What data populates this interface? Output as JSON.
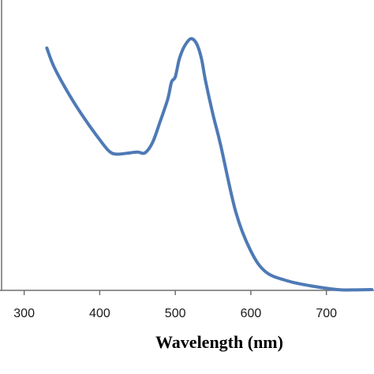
{
  "chart_data": {
    "type": "line",
    "title": "",
    "xlabel": "Wavelength (nm)",
    "ylabel": "",
    "xlim": [
      268,
      763
    ],
    "ylim": [
      0,
      1
    ],
    "x_ticks": [
      300,
      400,
      500,
      600,
      700
    ],
    "grid": false,
    "legend": "none",
    "line_color": "#4e7ab5",
    "axis_color": "#6f6f6f",
    "series": [
      {
        "x": [
          330,
          340,
          360,
          380,
          400,
          413,
          423,
          440,
          450,
          460,
          470,
          480,
          490,
          495,
          500,
          505,
          510,
          515,
          520,
          525,
          530,
          535,
          540,
          550,
          560,
          580,
          600,
          620,
          650,
          680,
          700,
          720,
          740,
          760
        ],
        "y": [
          0.925,
          0.85,
          0.745,
          0.655,
          0.575,
          0.53,
          0.52,
          0.525,
          0.528,
          0.525,
          0.565,
          0.645,
          0.73,
          0.795,
          0.815,
          0.88,
          0.92,
          0.945,
          0.96,
          0.955,
          0.93,
          0.88,
          0.8,
          0.67,
          0.555,
          0.3,
          0.15,
          0.07,
          0.035,
          0.017,
          0.008,
          0.002,
          0.002,
          0.003
        ]
      }
    ]
  }
}
